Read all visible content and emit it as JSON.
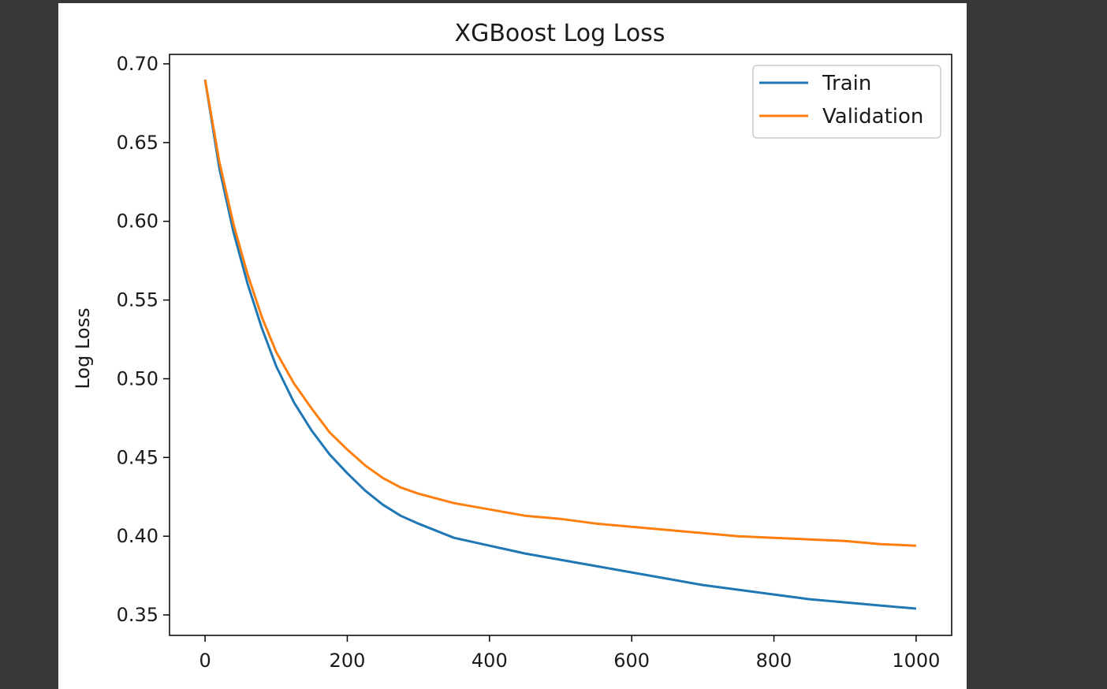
{
  "colors": {
    "window_background": "#383838",
    "figure_background": "#ffffff",
    "train": "#1f77b4",
    "validation": "#ff7f0e",
    "axes": "#000000",
    "legend_border": "#cccccc"
  },
  "chart_data": {
    "type": "line",
    "title": "XGBoost Log Loss",
    "xlabel": "",
    "ylabel": "Log Loss",
    "xlim": [
      -50,
      1050
    ],
    "ylim": [
      0.337,
      0.706
    ],
    "xticks": [
      0,
      200,
      400,
      600,
      800,
      1000
    ],
    "xtick_labels": [
      "0",
      "200",
      "400",
      "600",
      "800",
      "1000"
    ],
    "yticks": [
      0.35,
      0.4,
      0.45,
      0.5,
      0.55,
      0.6,
      0.65,
      0.7
    ],
    "ytick_labels": [
      "0.35",
      "0.40",
      "0.45",
      "0.50",
      "0.55",
      "0.60",
      "0.65",
      "0.70"
    ],
    "grid": false,
    "legend_position": "top-right",
    "series": [
      {
        "name": "Train",
        "color": "#1f77b4",
        "x": [
          0,
          20,
          40,
          60,
          80,
          100,
          125,
          150,
          175,
          200,
          225,
          250,
          275,
          300,
          350,
          400,
          450,
          500,
          550,
          600,
          650,
          700,
          750,
          800,
          850,
          900,
          950,
          1000
        ],
        "y": [
          0.69,
          0.634,
          0.593,
          0.56,
          0.532,
          0.508,
          0.485,
          0.467,
          0.452,
          0.44,
          0.429,
          0.42,
          0.413,
          0.408,
          0.399,
          0.394,
          0.389,
          0.385,
          0.381,
          0.377,
          0.373,
          0.369,
          0.366,
          0.363,
          0.36,
          0.358,
          0.356,
          0.354
        ]
      },
      {
        "name": "Validation",
        "color": "#ff7f0e",
        "x": [
          0,
          20,
          40,
          60,
          80,
          100,
          125,
          150,
          175,
          200,
          225,
          250,
          275,
          300,
          350,
          400,
          450,
          500,
          550,
          600,
          650,
          700,
          750,
          800,
          850,
          900,
          950,
          1000
        ],
        "y": [
          0.69,
          0.638,
          0.598,
          0.566,
          0.539,
          0.517,
          0.497,
          0.481,
          0.466,
          0.455,
          0.445,
          0.437,
          0.431,
          0.427,
          0.421,
          0.417,
          0.413,
          0.411,
          0.408,
          0.406,
          0.404,
          0.402,
          0.4,
          0.399,
          0.398,
          0.397,
          0.395,
          0.394
        ]
      }
    ]
  }
}
